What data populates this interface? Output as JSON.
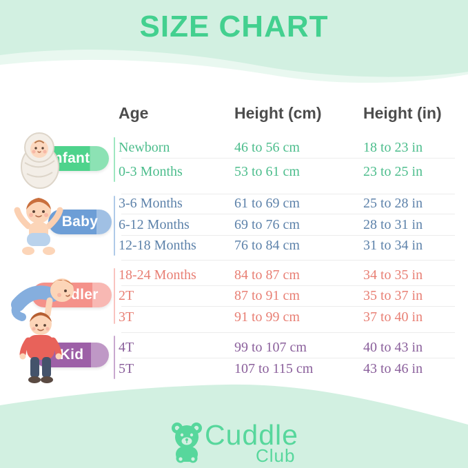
{
  "title": "SIZE CHART",
  "chart_data": {
    "type": "table",
    "title": "SIZE CHART",
    "columns": [
      "Age",
      "Height (cm)",
      "Height (in)"
    ],
    "groups": [
      {
        "label": "Infant",
        "color": "#4ed38c",
        "row_text_color": "#4cbd8c",
        "rows": [
          [
            "Newborn",
            "46 to 56 cm",
            "18 to 23 in"
          ],
          [
            "0-3 Months",
            "53 to 61 cm",
            "23 to 25 in"
          ]
        ]
      },
      {
        "label": "Baby",
        "color": "#6d9ed6",
        "row_text_color": "#5d82aa",
        "rows": [
          [
            "3-6 Months",
            "61 to 69 cm",
            "25 to 28 in"
          ],
          [
            "6-12 Months",
            "69 to 76 cm",
            "28 to 31 in"
          ],
          [
            "12-18 Months",
            "76 to 84 cm",
            "31 to 34 in"
          ]
        ]
      },
      {
        "label": "Toddler",
        "color": "#f4918a",
        "row_text_color": "#e87f74",
        "rows": [
          [
            "18-24 Months",
            "84 to 87 cm",
            "34 to 35 in"
          ],
          [
            "2T",
            "87 to 91 cm",
            "35 to 37 in"
          ],
          [
            "3T",
            "91 to 99 cm",
            "37 to 40 in"
          ]
        ]
      },
      {
        "label": "Kid",
        "color": "#9d60a7",
        "row_text_color": "#8a5f9b",
        "rows": [
          [
            "4T",
            "99 to 107 cm",
            "40 to 43 in"
          ],
          [
            "5T",
            "107 to 115 cm",
            "43 to 46 in"
          ]
        ]
      }
    ]
  },
  "footer": {
    "brand_primary": "Cuddle",
    "brand_secondary": "Club"
  },
  "icons": {
    "infant_illustration": "swaddled-baby",
    "baby_illustration": "sitting-baby-arms-up",
    "toddler_illustration": "crawling-toddler",
    "kid_illustration": "standing-kid",
    "logo_icon": "teddy-bear"
  },
  "colors": {
    "background_mint": "#d2f0e1",
    "card_white": "#ffffff",
    "title_green": "#43d08f",
    "header_text": "#4c4c4c",
    "logo_green": "#57d79c",
    "row_separator": "#ececec"
  }
}
